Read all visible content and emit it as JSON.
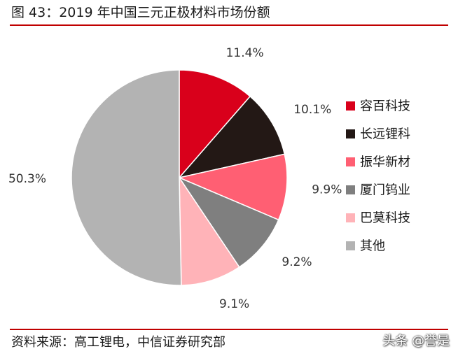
{
  "header": {
    "title": "图 43：2019 年中国三元正极材料市场份额"
  },
  "footer": {
    "source": "资料来源：高工锂电，中信证券研究部",
    "watermark": "头条 @誉是"
  },
  "chart_data": {
    "type": "pie",
    "start_angle": "12 o'clock",
    "direction": "clockwise",
    "legend_position": "right",
    "slices": [
      {
        "name": "容百科技",
        "value": 11.4,
        "label": "11.4%",
        "color": "#d9001b"
      },
      {
        "name": "长远锂科",
        "value": 10.1,
        "label": "10.1%",
        "color": "#231815"
      },
      {
        "name": "振华新材",
        "value": 9.9,
        "label": "9.9%",
        "color": "#ff5f73"
      },
      {
        "name": "厦门钨业",
        "value": 9.2,
        "label": "9.2%",
        "color": "#7f7f7f"
      },
      {
        "name": "巴莫科技",
        "value": 9.1,
        "label": "9.1%",
        "color": "#ffb3b8"
      },
      {
        "name": "其他",
        "value": 50.3,
        "label": "50.3%",
        "color": "#b3b3b3"
      }
    ]
  }
}
